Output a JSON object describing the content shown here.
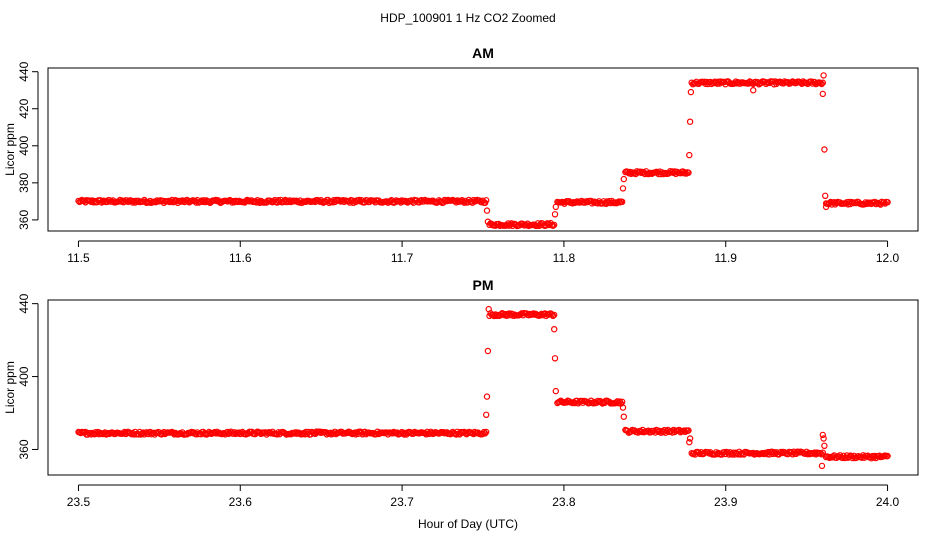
{
  "figure": {
    "title": "HDP_100901  1 Hz CO2 Zoomed",
    "xlabel": "Hour of Day (UTC)"
  },
  "chart_data": [
    {
      "type": "scatter",
      "title": "AM",
      "ylabel": "Licor ppm",
      "xlim": [
        11.5,
        12.0
      ],
      "ylim": [
        354,
        442
      ],
      "xticks": [
        "11.5",
        "11.6",
        "11.7",
        "11.8",
        "11.9",
        "12.0"
      ],
      "yticks": [
        "360",
        "380",
        "400",
        "420",
        "440"
      ],
      "grid": false,
      "color": "#ff0000",
      "segments": [
        {
          "x": [
            11.5,
            11.752
          ],
          "y": 370
        },
        {
          "x": [
            11.754,
            11.794
          ],
          "y": 357.5
        },
        {
          "x": [
            11.796,
            11.836
          ],
          "y": 369.5
        },
        {
          "x": [
            11.838,
            11.877
          ],
          "y": 385.5
        },
        {
          "x": [
            11.879,
            11.96
          ],
          "y": 434
        },
        {
          "x": [
            11.962,
            12.0
          ],
          "y": 369
        }
      ],
      "outliers": [
        {
          "x": 11.7525,
          "y": 365
        },
        {
          "x": 11.753,
          "y": 359
        },
        {
          "x": 11.7945,
          "y": 363
        },
        {
          "x": 11.795,
          "y": 367
        },
        {
          "x": 11.8365,
          "y": 377
        },
        {
          "x": 11.837,
          "y": 382
        },
        {
          "x": 11.8775,
          "y": 395
        },
        {
          "x": 11.878,
          "y": 413
        },
        {
          "x": 11.8785,
          "y": 429
        },
        {
          "x": 11.917,
          "y": 430
        },
        {
          "x": 11.96,
          "y": 428
        },
        {
          "x": 11.9605,
          "y": 438
        },
        {
          "x": 11.961,
          "y": 398
        },
        {
          "x": 11.9615,
          "y": 373
        },
        {
          "x": 11.962,
          "y": 367
        }
      ]
    },
    {
      "type": "scatter",
      "title": "PM",
      "ylabel": "Licor ppm",
      "xlim": [
        23.5,
        24.0
      ],
      "ylim": [
        346,
        442
      ],
      "xticks": [
        "23.5",
        "23.6",
        "23.7",
        "23.8",
        "23.9",
        "24.0"
      ],
      "yticks": [
        "360",
        "400",
        "440"
      ],
      "grid": false,
      "color": "#ff0000",
      "segments": [
        {
          "x": [
            23.5,
            23.752
          ],
          "y": 369
        },
        {
          "x": [
            23.754,
            23.794
          ],
          "y": 434
        },
        {
          "x": [
            23.796,
            23.836
          ],
          "y": 386
        },
        {
          "x": [
            23.838,
            23.877
          ],
          "y": 370
        },
        {
          "x": [
            23.879,
            23.96
          ],
          "y": 358
        },
        {
          "x": [
            23.962,
            24.0
          ],
          "y": 356
        }
      ],
      "outliers": [
        {
          "x": 23.752,
          "y": 379
        },
        {
          "x": 23.7525,
          "y": 389
        },
        {
          "x": 23.753,
          "y": 414
        },
        {
          "x": 23.7535,
          "y": 437
        },
        {
          "x": 23.794,
          "y": 426
        },
        {
          "x": 23.7945,
          "y": 410
        },
        {
          "x": 23.795,
          "y": 392
        },
        {
          "x": 23.8365,
          "y": 383
        },
        {
          "x": 23.837,
          "y": 378
        },
        {
          "x": 23.8775,
          "y": 364
        },
        {
          "x": 23.878,
          "y": 366
        },
        {
          "x": 23.9595,
          "y": 351
        },
        {
          "x": 23.96,
          "y": 368
        },
        {
          "x": 23.9605,
          "y": 366
        },
        {
          "x": 23.961,
          "y": 362
        }
      ]
    }
  ]
}
